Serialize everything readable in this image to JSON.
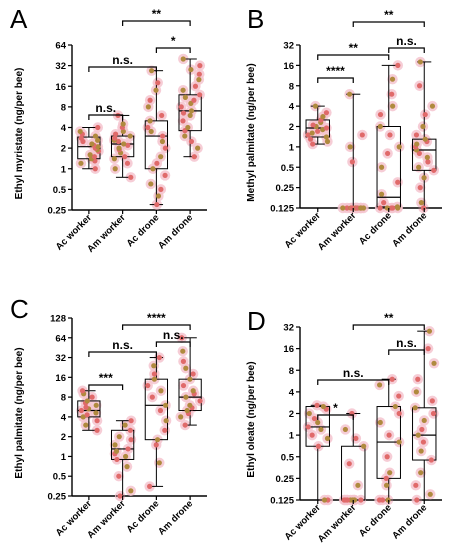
{
  "colors": {
    "dot_a": "#e06a6a",
    "dot_b": "#b08a3e",
    "halo": "#f4c4cf",
    "line": "#000000"
  },
  "chart_data": [
    {
      "letter": "A",
      "type": "box",
      "ylabel": "Ethyl myristate (ng/per bee)",
      "yscale": "log2",
      "ylim": [
        0.25,
        64
      ],
      "yticks": [
        "0.25",
        "0.5",
        "1",
        "2",
        "4",
        "8",
        "16",
        "32",
        "64"
      ],
      "categories": [
        "Ac worker",
        "Am worker",
        "Ac drone",
        "Am drone"
      ],
      "boxes": [
        {
          "min": 1.0,
          "q1": 1.4,
          "median": 2.1,
          "q3": 2.9,
          "max": 4.0
        },
        {
          "min": 0.75,
          "q1": 1.5,
          "median": 2.3,
          "q3": 3.0,
          "max": 6.0
        },
        {
          "min": 0.3,
          "q1": 1.0,
          "median": 3.0,
          "q3": 5.0,
          "max": 27.0
        },
        {
          "min": 1.5,
          "q1": 3.6,
          "median": 7.0,
          "q3": 12.0,
          "max": 40.0
        }
      ],
      "points": [
        [
          1.0,
          1.2,
          1.3,
          1.4,
          1.5,
          1.6,
          1.8,
          1.9,
          2.0,
          2.1,
          2.2,
          2.3,
          2.5,
          2.6,
          2.8,
          3.0,
          3.2,
          3.5,
          4.0
        ],
        [
          0.75,
          1.0,
          1.2,
          1.4,
          1.5,
          1.7,
          1.9,
          2.0,
          2.2,
          2.3,
          2.5,
          2.6,
          2.8,
          3.0,
          3.2,
          3.5,
          4.0,
          4.5,
          6.0
        ],
        [
          0.3,
          0.4,
          0.5,
          0.6,
          0.8,
          1.0,
          1.2,
          1.5,
          2.0,
          2.5,
          3.0,
          3.5,
          4.0,
          5.0,
          6.0,
          8.0,
          10.0,
          14.0,
          18.0,
          27.0
        ],
        [
          1.5,
          2.0,
          2.5,
          3.0,
          3.6,
          4.0,
          5.0,
          6.0,
          6.5,
          7.0,
          8.0,
          9.0,
          10.0,
          11.0,
          12.0,
          14.0,
          16.0,
          20.0,
          24.0,
          28.0,
          32.0,
          40.0
        ]
      ],
      "brackets": [
        {
          "from": 0,
          "to": 1,
          "label": "n.s.",
          "y": 12
        },
        {
          "from": 0,
          "to": 2,
          "label": "n.s.",
          "y": 42
        },
        {
          "from": 2,
          "to": 3,
          "label": "*",
          "y": 70
        },
        {
          "from": 1,
          "to": 3,
          "label": "**",
          "y": 118
        }
      ]
    },
    {
      "letter": "B",
      "type": "box",
      "ylabel": "Methyl palmitate (ng/per bee)",
      "yscale": "log2",
      "ylim": [
        0.125,
        32
      ],
      "yticks": [
        "0.125",
        "0.25",
        "0.5",
        "1",
        "2",
        "4",
        "8",
        "16",
        "32"
      ],
      "categories": [
        "Ac worker",
        "Am worker",
        "Ac drone",
        "Am drone"
      ],
      "boxes": [
        {
          "min": 1.1,
          "q1": 1.4,
          "median": 1.9,
          "q3": 2.5,
          "max": 4.0
        },
        {
          "min": 0.125,
          "q1": 0.125,
          "median": 0.125,
          "q3": 0.125,
          "max": 6.0
        },
        {
          "min": 0.125,
          "q1": 0.13,
          "median": 0.18,
          "q3": 2.0,
          "max": 16.0
        },
        {
          "min": 0.125,
          "q1": 0.45,
          "median": 0.9,
          "q3": 1.3,
          "max": 18.0
        }
      ],
      "points": [
        [
          1.1,
          1.2,
          1.3,
          1.4,
          1.5,
          1.6,
          1.7,
          1.8,
          1.9,
          2.0,
          2.1,
          2.3,
          2.5,
          2.8,
          3.2,
          4.0
        ],
        [
          0.125,
          0.125,
          0.125,
          0.125,
          0.125,
          0.125,
          0.125,
          0.125,
          0.125,
          0.125,
          0.125,
          0.125,
          0.125,
          0.125,
          0.6,
          1.0,
          1.5,
          6.0
        ],
        [
          0.125,
          0.125,
          0.125,
          0.125,
          0.125,
          0.13,
          0.15,
          0.2,
          0.3,
          0.5,
          0.8,
          1.0,
          1.5,
          2.0,
          3.0,
          4.0,
          6.0,
          10.0,
          16.0
        ],
        [
          0.125,
          0.15,
          0.25,
          0.35,
          0.45,
          0.5,
          0.6,
          0.7,
          0.8,
          0.9,
          1.0,
          1.1,
          1.2,
          1.3,
          1.5,
          2.0,
          3.0,
          4.0,
          8.0,
          18.0
        ]
      ],
      "brackets": [
        {
          "from": 0,
          "to": 1,
          "label": "****",
          "y": 12
        },
        {
          "from": 0,
          "to": 2,
          "label": "**",
          "y": 68
        },
        {
          "from": 2,
          "to": 3,
          "label": "n.s.",
          "y": 95
        },
        {
          "from": 1,
          "to": 3,
          "label": "**",
          "y": 120
        }
      ]
    },
    {
      "letter": "C",
      "type": "box",
      "ylabel": "Ethyl palmitate (ng/per bee)",
      "yscale": "log2",
      "ylim": [
        0.25,
        128
      ],
      "yticks": [
        "0.25",
        "0.5",
        "1",
        "2",
        "4",
        "8",
        "16",
        "32",
        "64",
        "128"
      ],
      "categories": [
        "Ac worker",
        "Am worker",
        "Ac drone",
        "Am drone"
      ],
      "boxes": [
        {
          "min": 2.5,
          "q1": 4.0,
          "median": 5.0,
          "q3": 7.0,
          "max": 10.0
        },
        {
          "min": 0.25,
          "q1": 0.9,
          "median": 1.3,
          "q3": 2.5,
          "max": 3.5
        },
        {
          "min": 0.35,
          "q1": 1.8,
          "median": 6.0,
          "q3": 15.0,
          "max": 32.0
        },
        {
          "min": 3.0,
          "q1": 5.0,
          "median": 8.0,
          "q3": 15.0,
          "max": 64.0
        }
      ],
      "points": [
        [
          2.5,
          3.0,
          3.5,
          4.0,
          4.3,
          4.6,
          5.0,
          5.3,
          5.6,
          6.0,
          6.5,
          7.0,
          8.0,
          9.0,
          10.0
        ],
        [
          0.25,
          0.3,
          0.5,
          0.7,
          0.9,
          1.0,
          1.1,
          1.2,
          1.3,
          1.5,
          1.8,
          2.0,
          2.5,
          3.0,
          3.5
        ],
        [
          0.35,
          0.8,
          1.5,
          1.8,
          2.5,
          3.5,
          5.0,
          6.0,
          8.0,
          10.0,
          12.0,
          15.0,
          18.0,
          24.0,
          32.0
        ],
        [
          3.0,
          4.0,
          4.5,
          5.0,
          5.5,
          6.0,
          7.0,
          8.0,
          9.0,
          10.0,
          12.0,
          15.0,
          18.0,
          22.0,
          28.0,
          40.0,
          64.0
        ]
      ],
      "brackets": [
        {
          "from": 0,
          "to": 1,
          "label": "***",
          "y": 14
        },
        {
          "from": 0,
          "to": 2,
          "label": "n.s.",
          "y": 62
        },
        {
          "from": 2,
          "to": 3,
          "label": "n.s.",
          "y": 90
        },
        {
          "from": 1,
          "to": 3,
          "label": "****",
          "y": 145
        }
      ]
    },
    {
      "letter": "D",
      "type": "box",
      "ylabel": "Ethyl oleate (ng/per bee)",
      "yscale": "log2",
      "ylim": [
        0.125,
        32
      ],
      "yticks": [
        "0.125",
        "0.25",
        "0.5",
        "1",
        "2",
        "4",
        "8",
        "16",
        "32"
      ],
      "categories": [
        "Ac worker",
        "Am worker",
        "Ac drone",
        "Am drone"
      ],
      "boxes": [
        {
          "min": 0.125,
          "q1": 0.7,
          "median": 1.3,
          "q3": 2.5,
          "max": 2.6
        },
        {
          "min": 0.125,
          "q1": 0.125,
          "median": 0.125,
          "q3": 0.7,
          "max": 2.0
        },
        {
          "min": 0.125,
          "q1": 0.25,
          "median": 0.8,
          "q3": 2.5,
          "max": 6.0
        },
        {
          "min": 0.125,
          "q1": 0.45,
          "median": 1.0,
          "q3": 2.4,
          "max": 28.0
        }
      ],
      "points": [
        [
          0.125,
          0.125,
          0.7,
          0.9,
          1.0,
          1.2,
          1.3,
          1.5,
          1.7,
          2.0,
          2.3,
          2.5,
          2.6
        ],
        [
          0.125,
          0.125,
          0.125,
          0.125,
          0.125,
          0.125,
          0.125,
          0.125,
          0.125,
          0.2,
          0.4,
          0.7,
          0.9,
          1.2,
          2.0
        ],
        [
          0.125,
          0.125,
          0.125,
          0.2,
          0.25,
          0.3,
          0.5,
          0.8,
          1.0,
          1.5,
          2.0,
          2.5,
          3.5,
          5.0,
          6.0
        ],
        [
          0.125,
          0.15,
          0.2,
          0.3,
          0.45,
          0.6,
          0.8,
          1.0,
          1.2,
          1.6,
          2.0,
          2.4,
          3.0,
          4.0,
          6.0,
          10.0,
          16.0,
          28.0
        ]
      ],
      "brackets": [
        {
          "from": 0,
          "to": 1,
          "label": "*",
          "y": 14
        },
        {
          "from": 0,
          "to": 2,
          "label": "n.s.",
          "y": 48
        },
        {
          "from": 2,
          "to": 3,
          "label": "n.s.",
          "y": 90
        },
        {
          "from": 1,
          "to": 3,
          "label": "**",
          "y": 115
        }
      ]
    }
  ]
}
